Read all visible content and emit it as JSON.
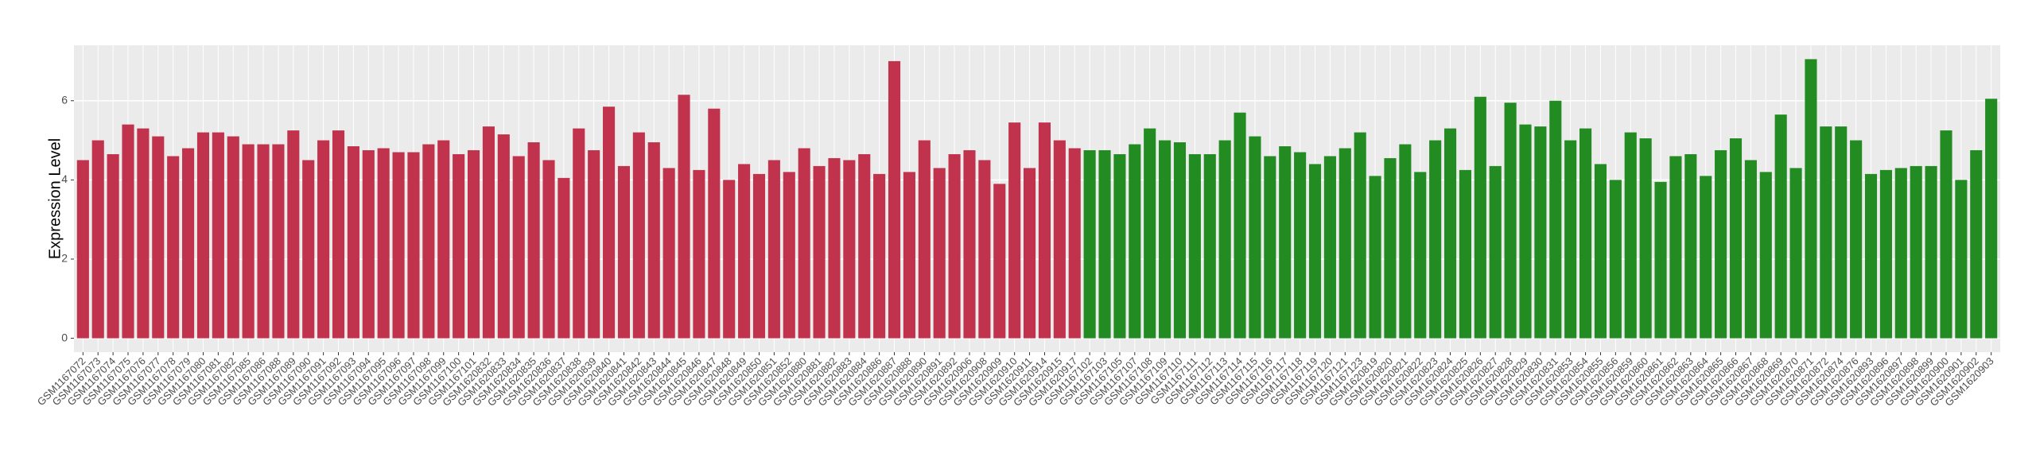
{
  "chart_data": {
    "type": "bar",
    "y_label": "Expression Level",
    "categories": [
      "GSM1167072",
      "GSM1167073",
      "GSM1167074",
      "GSM1167075",
      "GSM1167076",
      "GSM1167077",
      "GSM1167078",
      "GSM1167079",
      "GSM1167080",
      "GSM1167081",
      "GSM1167082",
      "GSM1167085",
      "GSM1167086",
      "GSM1167088",
      "GSM1167089",
      "GSM1167090",
      "GSM1167091",
      "GSM1167092",
      "GSM1167093",
      "GSM1167094",
      "GSM1167095",
      "GSM1167096",
      "GSM1167097",
      "GSM1167098",
      "GSM1167099",
      "GSM1167100",
      "GSM1167101",
      "GSM1620832",
      "GSM1620833",
      "GSM1620834",
      "GSM1620835",
      "GSM1620836",
      "GSM1620837",
      "GSM1620838",
      "GSM1620839",
      "GSM1620840",
      "GSM1620841",
      "GSM1620842",
      "GSM1620843",
      "GSM1620844",
      "GSM1620845",
      "GSM1620846",
      "GSM1620847",
      "GSM1620848",
      "GSM1620849",
      "GSM1620850",
      "GSM1620851",
      "GSM1620852",
      "GSM1620880",
      "GSM1620881",
      "GSM1620882",
      "GSM1620883",
      "GSM1620884",
      "GSM1620886",
      "GSM1620887",
      "GSM1620888",
      "GSM1620890",
      "GSM1620891",
      "GSM1620892",
      "GSM1620906",
      "GSM1620908",
      "GSM1620909",
      "GSM1620910",
      "GSM1620911",
      "GSM1620914",
      "GSM1620915",
      "GSM1620917",
      "GSM1167102",
      "GSM1167103",
      "GSM1167105",
      "GSM1167107",
      "GSM1167108",
      "GSM1167109",
      "GSM1167110",
      "GSM1167111",
      "GSM1167112",
      "GSM1167113",
      "GSM1167114",
      "GSM1167115",
      "GSM1167116",
      "GSM1167117",
      "GSM1167118",
      "GSM1167119",
      "GSM1167120",
      "GSM1167121",
      "GSM1167123",
      "GSM1620819",
      "GSM1620820",
      "GSM1620821",
      "GSM1620822",
      "GSM1620823",
      "GSM1620824",
      "GSM1620825",
      "GSM1620826",
      "GSM1620827",
      "GSM1620828",
      "GSM1620829",
      "GSM1620830",
      "GSM1620831",
      "GSM1620853",
      "GSM1620854",
      "GSM1620855",
      "GSM1620856",
      "GSM1620859",
      "GSM1620860",
      "GSM1620861",
      "GSM1620862",
      "GSM1620863",
      "GSM1620864",
      "GSM1620865",
      "GSM1620866",
      "GSM1620867",
      "GSM1620868",
      "GSM1620869",
      "GSM1620870",
      "GSM1620871",
      "GSM1620872",
      "GSM1620874",
      "GSM1620876",
      "GSM1620893",
      "GSM1620896",
      "GSM1620897",
      "GSM1620898",
      "GSM1620899",
      "GSM1620900",
      "GSM1620901",
      "GSM1620902",
      "GSM1620903"
    ],
    "series": [
      {
        "color": "#c1334d",
        "values": [
          4.5,
          5.0,
          4.65,
          5.4,
          5.3,
          5.1,
          4.6,
          4.8,
          5.2,
          5.2,
          5.1,
          4.9,
          4.9,
          4.9,
          5.25,
          4.5,
          5.0,
          5.25,
          4.85,
          4.75,
          4.8,
          4.7,
          4.7,
          4.9,
          5.0,
          4.65,
          4.75,
          5.35,
          5.15,
          4.6,
          4.95,
          4.5,
          4.05,
          5.3,
          4.75,
          5.85,
          4.35,
          5.2,
          4.95,
          4.3,
          6.15,
          4.25,
          5.8,
          4.0,
          4.4,
          4.15,
          4.5,
          4.2,
          4.8,
          4.35,
          4.55,
          4.5,
          4.65,
          4.15,
          7.0,
          4.2,
          5.0,
          4.3,
          4.65,
          4.75,
          4.5,
          3.9,
          5.45,
          4.3,
          5.45,
          5.0,
          4.8,
          null,
          null,
          null,
          null,
          null,
          null,
          null,
          null,
          null,
          null,
          null,
          null,
          null,
          null,
          null,
          null,
          null,
          null,
          null,
          null,
          null,
          null,
          null,
          null,
          null,
          null,
          null,
          null,
          null,
          null,
          null,
          null,
          null,
          null,
          null,
          null,
          null,
          null,
          null,
          null,
          null,
          null,
          null,
          null,
          null,
          null,
          null,
          null,
          null,
          null,
          null,
          null,
          null,
          null,
          null,
          null,
          null,
          null,
          null,
          null,
          null
        ]
      },
      {
        "color": "#228b22",
        "values": [
          null,
          null,
          null,
          null,
          null,
          null,
          null,
          null,
          null,
          null,
          null,
          null,
          null,
          null,
          null,
          null,
          null,
          null,
          null,
          null,
          null,
          null,
          null,
          null,
          null,
          null,
          null,
          null,
          null,
          null,
          null,
          null,
          null,
          null,
          null,
          null,
          null,
          null,
          null,
          null,
          null,
          null,
          null,
          null,
          null,
          null,
          null,
          null,
          null,
          null,
          null,
          null,
          null,
          null,
          null,
          null,
          null,
          null,
          null,
          null,
          null,
          null,
          null,
          null,
          null,
          null,
          null,
          4.75,
          4.75,
          4.65,
          4.9,
          5.3,
          5.0,
          4.95,
          4.65,
          4.65,
          5.0,
          5.7,
          5.1,
          4.6,
          4.85,
          4.7,
          4.4,
          4.6,
          4.8,
          5.2,
          4.1,
          4.55,
          4.9,
          4.2,
          5.0,
          5.3,
          4.25,
          6.1,
          4.35,
          5.95,
          5.4,
          5.35,
          6.0,
          5.0,
          5.3,
          4.4,
          4.0,
          5.2,
          5.05,
          3.95,
          4.6,
          4.65,
          4.1,
          4.75,
          5.05,
          4.5,
          4.2,
          5.65,
          4.3,
          7.05,
          5.35,
          5.35,
          5.0,
          4.15,
          4.25,
          4.3,
          4.35,
          4.35,
          5.25,
          4.0,
          4.75,
          6.05
        ]
      }
    ],
    "ylim": [
      -0.35,
      7.4
    ],
    "yticks": [
      0,
      2,
      4,
      6
    ],
    "grid": true
  }
}
